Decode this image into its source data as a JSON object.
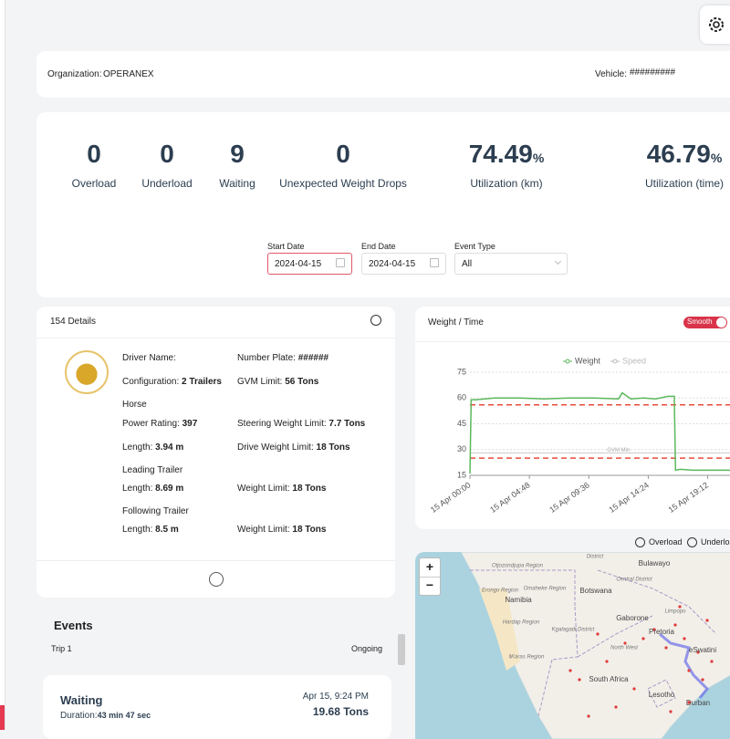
{
  "header": {
    "organization_label": "Organization:",
    "organization": "OPERANEX",
    "vehicle_label": "Vehicle:",
    "vehicle": "#########"
  },
  "stats": [
    {
      "value": 0,
      "label": "Overload"
    },
    {
      "value": 0,
      "label": "Underload"
    },
    {
      "value": 9,
      "label": "Waiting"
    },
    {
      "value": 0,
      "label": "Unexpected Weight Drops"
    },
    {
      "value": 74.49,
      "unit": "%",
      "label": "Utilization (km)"
    },
    {
      "value": 46.79,
      "unit": "%",
      "label": "Utilization (time)"
    }
  ],
  "filters": [
    {
      "label": "Start Date",
      "value": "2024-04-15"
    },
    {
      "label": "End Date",
      "value": "2024-04-15"
    },
    {
      "label": "Event Type",
      "value": "All"
    }
  ],
  "details": {
    "title": "154 Details",
    "items": [
      {
        "label": "Driver Name:"
      },
      {
        "label": "Number Plate:",
        "value": "######"
      },
      {
        "label": "Configuration:",
        "value": "2 Trailers"
      },
      {
        "label": "GVM Limit:",
        "value": "56 Tons"
      },
      {
        "heading": "Horse"
      },
      {
        "label": "Power Rating:",
        "value": "397"
      },
      {
        "label": "Steering Weight Limit:",
        "value": "7.7 Tons"
      },
      {
        "label": "Length:",
        "value": "3.94 m"
      },
      {
        "label": "Drive Weight Limit:",
        "value": "18 Tons"
      },
      {
        "heading": "Leading Trailer"
      },
      {
        "label": "Length:",
        "value": "8.69 m"
      },
      {
        "label": "Weight Limit:",
        "value": "18 Tons"
      },
      {
        "heading": "Following Trailer"
      },
      {
        "label": "Length:",
        "value": "8.5 m"
      },
      {
        "label": "Weight Limit:",
        "value": "18 Tons"
      }
    ]
  },
  "events": {
    "title": "Events",
    "trip": "Trip 1",
    "status": "Ongoing",
    "cards": [
      {
        "type": "Waiting",
        "duration_label": "Duration:",
        "duration": "43 min 47 sec",
        "time": "Apr 15, 9:24 PM",
        "weight": "19.68 Tons"
      }
    ]
  },
  "chart_data": {
    "type": "line",
    "title": "Weight / Time",
    "toggle": "Smooth",
    "x": [
      0,
      0.1,
      0.5,
      2,
      4,
      6,
      8,
      10,
      12,
      12.3,
      13,
      14,
      15,
      16,
      16.5,
      16.6,
      17,
      18,
      20,
      21
    ],
    "xlim": [
      0,
      21
    ],
    "xticks": [
      {
        "value": 0,
        "label": "15 Apr 00:00"
      },
      {
        "value": 4.8,
        "label": "15 Apr 04:48"
      },
      {
        "value": 9.6,
        "label": "15 Apr 09:36"
      },
      {
        "value": 14.4,
        "label": "15 Apr 14:24"
      },
      {
        "value": 19.2,
        "label": "15 Apr 19:12"
      }
    ],
    "ylim": [
      15,
      75
    ],
    "yticks": [
      15,
      30,
      45,
      60,
      75
    ],
    "grid": true,
    "legend": "top",
    "series": [
      {
        "name": "Weight",
        "color": "#5cb85c",
        "values": [
          16,
          59,
          59,
          60,
          60,
          59.5,
          60,
          60,
          59.5,
          63,
          59.5,
          60,
          59.5,
          61,
          61,
          18,
          18.5,
          18,
          18,
          18
        ]
      },
      {
        "name": "Speed",
        "color": "#bbbbbb",
        "values": [
          null,
          null,
          null,
          null,
          null,
          null,
          null,
          null,
          null,
          null,
          null,
          null,
          null,
          null,
          null,
          null,
          null,
          null,
          null,
          null
        ]
      }
    ],
    "reference_lines": [
      {
        "value": 56,
        "color": "#e74c3c"
      },
      {
        "value": 28,
        "label": "GVM Min",
        "color": "#cccccc"
      },
      {
        "value": 25,
        "color": "#e74c3c"
      }
    ]
  },
  "map_legend": [
    "Overload",
    "Underload"
  ],
  "map": {
    "zoom_in": "+",
    "zoom_out": "−",
    "labels": [
      "District",
      "Bulawayo",
      "Otjozondjupa Region",
      "Central District",
      "Erongo Region",
      "Omaheke Region",
      "Namibia",
      "Botswana",
      "Limpopo",
      "Gaborone",
      "Hardap Region",
      "Kgalagadi District",
      "Pretoria",
      "North West",
      "eSwatini",
      "ǁKaras Region",
      "South Africa",
      "Lesotho",
      "Durban"
    ]
  }
}
